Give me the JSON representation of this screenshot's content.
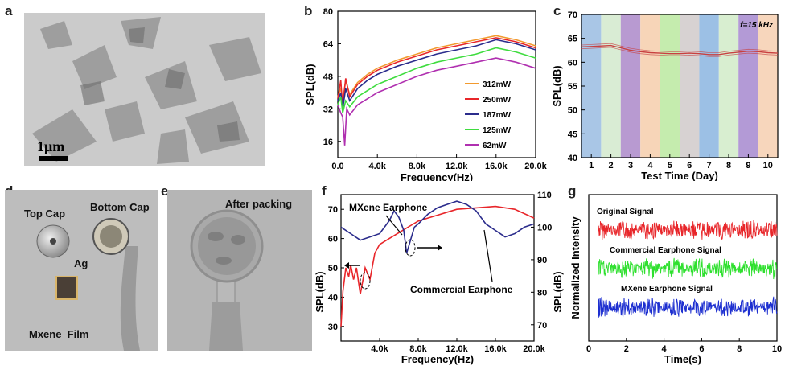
{
  "panels": {
    "a": {
      "label": "a",
      "scale_bar": "1μm"
    },
    "b": {
      "label": "b",
      "chart_data": {
        "type": "line",
        "xlabel": "Frequency(Hz)",
        "ylabel": "SPL(dB)",
        "xlim": [
          0,
          20000
        ],
        "ylim": [
          8,
          80
        ],
        "xticks": [
          {
            "v": 0,
            "t": "0.0"
          },
          {
            "v": 4000,
            "t": "4.0k"
          },
          {
            "v": 8000,
            "t": "8.0k"
          },
          {
            "v": 12000,
            "t": "12.0k"
          },
          {
            "v": 16000,
            "t": "16.0k"
          },
          {
            "v": 20000,
            "t": "20.0k"
          }
        ],
        "yticks": [
          16,
          32,
          48,
          64,
          80
        ],
        "legend_position": "right",
        "series": [
          {
            "name": "312mW",
            "color": "#f29a2e",
            "x": [
              0,
              300,
              500,
              800,
              1200,
              2000,
              3000,
              4000,
              6000,
              8000,
              10000,
              12000,
              14000,
              16000,
              18000,
              20000
            ],
            "y": [
              38,
              42,
              36,
              46,
              39,
              45,
              49,
              52,
              56,
              59,
              62,
              64,
              66,
              68,
              66,
              63
            ]
          },
          {
            "name": "250mW",
            "color": "#e8262a",
            "x": [
              0,
              300,
              500,
              800,
              1200,
              2000,
              3000,
              4000,
              6000,
              8000,
              10000,
              12000,
              14000,
              16000,
              18000,
              20000
            ],
            "y": [
              37,
              46,
              33,
              47,
              38,
              44,
              48,
              51,
              55,
              58,
              61,
              63,
              65,
              67,
              65,
              62
            ]
          },
          {
            "name": "187mW",
            "color": "#2b2c8c",
            "x": [
              0,
              300,
              500,
              800,
              1200,
              2000,
              3000,
              4000,
              6000,
              8000,
              10000,
              12000,
              14000,
              16000,
              18000,
              20000
            ],
            "y": [
              36,
              40,
              32,
              42,
              36,
              42,
              46,
              49,
              53,
              56,
              59,
              61,
              63,
              66,
              64,
              61
            ]
          },
          {
            "name": "125mW",
            "color": "#3fdc3f",
            "x": [
              0,
              300,
              500,
              800,
              1200,
              2000,
              3000,
              4000,
              6000,
              8000,
              10000,
              12000,
              14000,
              16000,
              18000,
              20000
            ],
            "y": [
              34,
              38,
              30,
              36,
              33,
              38,
              41,
              44,
              48,
              52,
              55,
              57,
              59,
              62,
              60,
              57
            ]
          },
          {
            "name": "62mW",
            "color": "#b030b0",
            "x": [
              0,
              300,
              500,
              700,
              900,
              1200,
              2000,
              3000,
              4000,
              6000,
              8000,
              10000,
              12000,
              14000,
              16000,
              18000,
              20000
            ],
            "y": [
              34,
              30,
              28,
              14,
              32,
              29,
              34,
              37,
              40,
              44,
              48,
              51,
              53,
              55,
              57,
              55,
              52
            ]
          }
        ]
      }
    },
    "c": {
      "label": "c",
      "chart_data": {
        "type": "line",
        "xlabel": "Test Time (Day)",
        "ylabel": "SPL(dB)",
        "annotation": "f=15 kHz",
        "xlim": [
          0.5,
          10.5
        ],
        "ylim": [
          40,
          70
        ],
        "xticks": [
          1,
          2,
          3,
          4,
          5,
          6,
          7,
          8,
          9,
          10
        ],
        "yticks": [
          40,
          45,
          50,
          55,
          60,
          65,
          70
        ],
        "band_colors": [
          "#a9c6e6",
          "#d9ecd4",
          "#b89ad1",
          "#f7d5b8",
          "#c5ecae",
          "#d7d2d2",
          "#9cc0e5",
          "#d8eed0",
          "#b39ad6",
          "#f7d6bc"
        ],
        "series": [
          {
            "name": "SPL",
            "color": "#c84040",
            "x": [
              0.5,
              1,
              1.5,
              2,
              2.5,
              3,
              3.5,
              4,
              4.5,
              5,
              5.5,
              6,
              6.5,
              7,
              7.5,
              8,
              8.5,
              9,
              9.5,
              10,
              10.5
            ],
            "y": [
              63.2,
              63.3,
              63.4,
              63.5,
              63.0,
              62.5,
              62.2,
              62.0,
              61.9,
              61.8,
              61.8,
              61.9,
              61.8,
              61.6,
              61.6,
              61.9,
              62.1,
              62.3,
              62.2,
              62.0,
              61.9
            ]
          }
        ]
      }
    },
    "d": {
      "label": "d",
      "captions": {
        "top_cap": "Top Cap",
        "bottom_cap": "Bottom Cap",
        "ag": "Ag",
        "film": "Mxene  Film"
      }
    },
    "e": {
      "label": "e",
      "caption": "After packing"
    },
    "f": {
      "label": "f",
      "chart_data": {
        "type": "line",
        "xlabel": "Frequency(Hz)",
        "ylabel": "SPL(dB)",
        "ylabel_right": "SPL(dB)",
        "xlim": [
          0,
          20000
        ],
        "ylim": [
          25,
          75
        ],
        "ylim_right": [
          65,
          110
        ],
        "xticks": [
          {
            "v": 4000,
            "t": "4.0k"
          },
          {
            "v": 8000,
            "t": "8.0k"
          },
          {
            "v": 12000,
            "t": "12.0k"
          },
          {
            "v": 16000,
            "t": "16.0k"
          },
          {
            "v": 20000,
            "t": "20.0k"
          }
        ],
        "yticks": [
          30,
          40,
          50,
          60,
          70
        ],
        "yticks_right": [
          70,
          80,
          90,
          100,
          110
        ],
        "annotations": [
          "MXene Earphone",
          "Commercial Earphone"
        ],
        "series": [
          {
            "name": "MXene Earphone",
            "color": "#e8262a",
            "axis": "left",
            "x": [
              0,
              200,
              500,
              800,
              1000,
              1300,
              1600,
              2000,
              2500,
              3000,
              3500,
              4000,
              5000,
              6000,
              7000,
              8000,
              9000,
              10000,
              11000,
              12000,
              14000,
              16000,
              18000,
              20000
            ],
            "y": [
              30,
              42,
              50,
              47,
              51,
              46,
              50,
              41,
              50,
              46,
              55,
              58,
              60,
              62,
              64,
              66,
              67,
              68,
              69,
              70,
              70.5,
              71,
              70,
              67
            ]
          },
          {
            "name": "Commercial Earphone",
            "color": "#2b2c8c",
            "axis": "right",
            "x": [
              0,
              1000,
              2000,
              3000,
              4000,
              5000,
              5500,
              6000,
              6500,
              6800,
              7200,
              7600,
              8000,
              9000,
              10000,
              11000,
              12000,
              13000,
              14000,
              15000,
              16000,
              17000,
              18000,
              19000,
              20000
            ],
            "y": [
              100,
              98,
              96,
              97,
              98,
              102,
              105,
              103,
              99,
              92,
              96,
              100,
              101,
              104,
              106,
              107,
              108,
              107,
              105,
              101,
              99,
              97,
              98,
              100,
              101
            ]
          }
        ]
      }
    },
    "g": {
      "label": "g",
      "chart_data": {
        "type": "line",
        "xlabel": "Time(s)",
        "ylabel": "Normalized Intensity",
        "xlim": [
          0,
          10
        ],
        "xticks": [
          0,
          2,
          4,
          6,
          8,
          10
        ],
        "series": [
          {
            "name": "Original Signal",
            "color": "#e8262a"
          },
          {
            "name": "Commercial Earphone Signal",
            "color": "#2fe02f"
          },
          {
            "name": "MXene Earphone Signal",
            "color": "#1d2fd0"
          }
        ]
      }
    }
  }
}
